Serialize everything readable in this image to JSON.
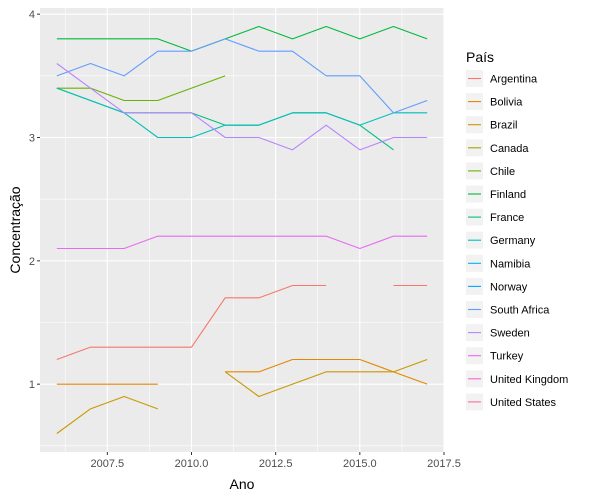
{
  "chart_data": {
    "type": "line",
    "title": "",
    "xlabel": "Ano",
    "ylabel": "Concentração",
    "xlim": [
      2005.5,
      2017.5
    ],
    "ylim": [
      0.45,
      4.05
    ],
    "x_ticks": [
      2007.5,
      2010.0,
      2012.5,
      2015.0,
      2017.5
    ],
    "x_tick_labels": [
      "2007.5",
      "2010.0",
      "2012.5",
      "2015.0",
      "2017.5"
    ],
    "y_ticks": [
      1,
      2,
      3,
      4
    ],
    "y_tick_labels": [
      "1",
      "2",
      "3",
      "4"
    ],
    "grid": true,
    "legend": {
      "title": "País",
      "position": "right"
    },
    "series": [
      {
        "name": "Argentina",
        "color": "#F8766D",
        "segments": [
          [
            [
              2006,
              1.2
            ],
            [
              2007,
              1.3
            ],
            [
              2008,
              1.3
            ],
            [
              2009,
              1.3
            ],
            [
              2010,
              1.3
            ],
            [
              2011,
              1.7
            ],
            [
              2012,
              1.7
            ],
            [
              2013,
              1.8
            ],
            [
              2014,
              1.8
            ]
          ],
          [
            [
              2016,
              1.8
            ],
            [
              2017,
              1.8
            ]
          ]
        ]
      },
      {
        "name": "Bolivia",
        "color": "#E58700",
        "segments": [
          [
            [
              2006,
              1.0
            ],
            [
              2007,
              1.0
            ],
            [
              2008,
              1.0
            ],
            [
              2009,
              1.0
            ]
          ],
          [
            [
              2011,
              1.1
            ],
            [
              2012,
              1.1
            ],
            [
              2013,
              1.2
            ],
            [
              2014,
              1.2
            ],
            [
              2015,
              1.2
            ],
            [
              2016,
              1.1
            ],
            [
              2017,
              1.0
            ]
          ]
        ]
      },
      {
        "name": "Brazil",
        "color": "#C99800",
        "segments": [
          [
            [
              2006,
              0.6
            ],
            [
              2007,
              0.8
            ],
            [
              2008,
              0.9
            ],
            [
              2009,
              0.8
            ]
          ],
          [
            [
              2011,
              1.1
            ],
            [
              2012,
              0.9
            ],
            [
              2013,
              1.0
            ],
            [
              2014,
              1.1
            ],
            [
              2015,
              1.1
            ],
            [
              2016,
              1.1
            ],
            [
              2017,
              1.2
            ]
          ]
        ]
      },
      {
        "name": "Canada",
        "color": "#A3A500",
        "segments": []
      },
      {
        "name": "Chile",
        "color": "#6BB100",
        "segments": [
          [
            [
              2006,
              3.4
            ],
            [
              2007,
              3.4
            ],
            [
              2008,
              3.3
            ],
            [
              2009,
              3.3
            ],
            [
              2010,
              3.4
            ],
            [
              2011,
              3.5
            ]
          ]
        ]
      },
      {
        "name": "Finland",
        "color": "#00BA38",
        "segments": [
          [
            [
              2006,
              3.8
            ],
            [
              2007,
              3.8
            ],
            [
              2008,
              3.8
            ],
            [
              2009,
              3.8
            ],
            [
              2010,
              3.7
            ],
            [
              2011,
              3.8
            ],
            [
              2012,
              3.9
            ],
            [
              2013,
              3.8
            ],
            [
              2014,
              3.9
            ],
            [
              2015,
              3.8
            ],
            [
              2016,
              3.9
            ],
            [
              2017,
              3.8
            ]
          ]
        ]
      },
      {
        "name": "France",
        "color": "#00BF7D",
        "segments": [
          [
            [
              2006,
              3.4
            ],
            [
              2007,
              3.3
            ],
            [
              2008,
              3.2
            ],
            [
              2009,
              3.2
            ],
            [
              2010,
              3.2
            ],
            [
              2011,
              3.1
            ],
            [
              2012,
              3.1
            ],
            [
              2013,
              3.2
            ],
            [
              2014,
              3.2
            ],
            [
              2015,
              3.1
            ],
            [
              2016,
              2.9
            ]
          ]
        ]
      },
      {
        "name": "Germany",
        "color": "#00C0B8",
        "segments": [
          [
            [
              2006,
              3.4
            ],
            [
              2007,
              3.3
            ],
            [
              2008,
              3.2
            ],
            [
              2009,
              3.0
            ],
            [
              2010,
              3.0
            ],
            [
              2011,
              3.1
            ],
            [
              2012,
              3.1
            ],
            [
              2013,
              3.2
            ],
            [
              2014,
              3.2
            ],
            [
              2015,
              3.1
            ],
            [
              2016,
              3.2
            ],
            [
              2017,
              3.2
            ]
          ]
        ]
      },
      {
        "name": "Namibia",
        "color": "#00B0F6",
        "segments": []
      },
      {
        "name": "Norway",
        "color": "#00A5FF",
        "segments": []
      },
      {
        "name": "South Africa",
        "color": "#619CFF",
        "segments": [
          [
            [
              2006,
              3.5
            ],
            [
              2007,
              3.6
            ],
            [
              2008,
              3.5
            ],
            [
              2009,
              3.7
            ],
            [
              2010,
              3.7
            ],
            [
              2011,
              3.8
            ],
            [
              2012,
              3.7
            ],
            [
              2013,
              3.7
            ],
            [
              2014,
              3.5
            ],
            [
              2015,
              3.5
            ],
            [
              2016,
              3.2
            ],
            [
              2017,
              3.3
            ]
          ]
        ]
      },
      {
        "name": "Sweden",
        "color": "#B983FF",
        "segments": [
          [
            [
              2006,
              3.6
            ],
            [
              2007,
              3.4
            ],
            [
              2008,
              3.2
            ],
            [
              2009,
              3.2
            ],
            [
              2010,
              3.2
            ],
            [
              2011,
              3.0
            ],
            [
              2012,
              3.0
            ],
            [
              2013,
              2.9
            ],
            [
              2014,
              3.1
            ],
            [
              2015,
              2.9
            ],
            [
              2016,
              3.0
            ],
            [
              2017,
              3.0
            ]
          ]
        ]
      },
      {
        "name": "Turkey",
        "color": "#E76BF3",
        "segments": [
          [
            [
              2006,
              2.1
            ],
            [
              2007,
              2.1
            ],
            [
              2008,
              2.1
            ],
            [
              2009,
              2.2
            ],
            [
              2010,
              2.2
            ],
            [
              2011,
              2.2
            ],
            [
              2012,
              2.2
            ],
            [
              2013,
              2.2
            ],
            [
              2014,
              2.2
            ],
            [
              2015,
              2.1
            ],
            [
              2016,
              2.2
            ],
            [
              2017,
              2.2
            ]
          ]
        ]
      },
      {
        "name": "United Kingdom",
        "color": "#FD61D1",
        "segments": []
      },
      {
        "name": "United States",
        "color": "#FF67A4",
        "segments": []
      }
    ]
  }
}
